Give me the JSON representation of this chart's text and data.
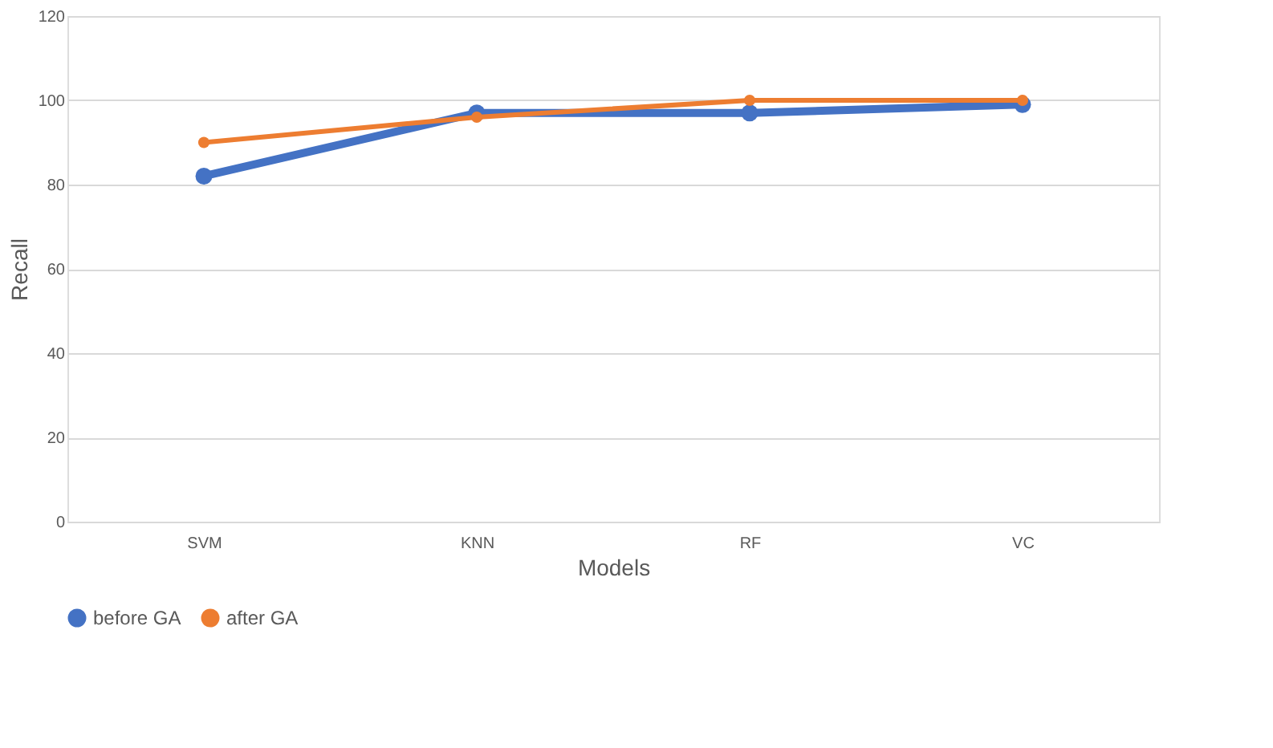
{
  "chart_data": {
    "type": "line",
    "xlabel": "Models",
    "ylabel": "Recall",
    "categories": [
      "SVM",
      "KNN",
      "RF",
      "VC"
    ],
    "series": [
      {
        "name": "before GA",
        "color": "#4472c4",
        "values": [
          82,
          97,
          97,
          99
        ]
      },
      {
        "name": "after GA",
        "color": "#ed7d31",
        "values": [
          90,
          96,
          100,
          100
        ]
      }
    ],
    "ylim": [
      0,
      120
    ],
    "yticks": [
      0,
      20,
      40,
      60,
      80,
      100,
      120
    ],
    "grid": "y",
    "legend": "bottom",
    "marker": "circle",
    "line_style": "solid"
  }
}
